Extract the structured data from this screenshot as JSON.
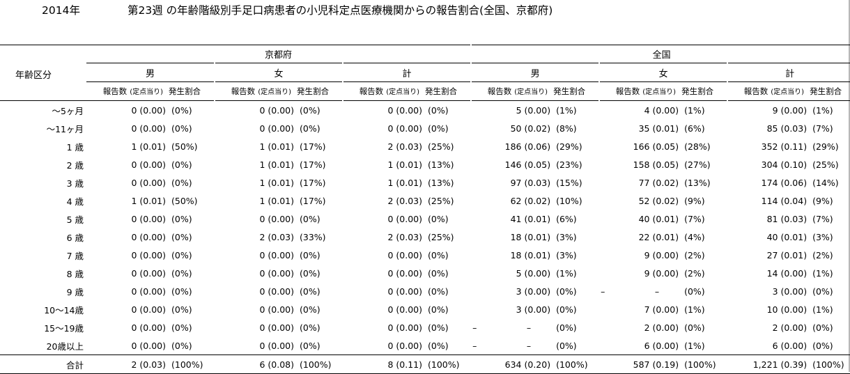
{
  "title": {
    "year": "2014年",
    "text": "第23週 の年齢階級別手足口病患者の小児科定点医療機関からの報告割合(全国、京都府)"
  },
  "header": {
    "age_label": "年齢区分",
    "kyoto": "京都府",
    "national": "全国",
    "male": "男",
    "female": "女",
    "total": "計",
    "report_label": "報告数",
    "per_site_label": "(定点当り)",
    "ratio_label": "発生割合"
  },
  "rows": [
    {
      "age": "～5ヶ月",
      "cells": [
        [
          "0 (0.00)",
          "(0%)"
        ],
        [
          "0 (0.00)",
          "(0%)"
        ],
        [
          "0 (0.00)",
          "(0%)"
        ],
        [
          "5 (0.00)",
          "(1%)"
        ],
        [
          "4 (0.00)",
          "(1%)"
        ],
        [
          "9 (0.00)",
          "(1%)"
        ]
      ]
    },
    {
      "age": "～11ヶ月",
      "cells": [
        [
          "0 (0.00)",
          "(0%)"
        ],
        [
          "0 (0.00)",
          "(0%)"
        ],
        [
          "0 (0.00)",
          "(0%)"
        ],
        [
          "50 (0.02)",
          "(8%)"
        ],
        [
          "35 (0.01)",
          "(6%)"
        ],
        [
          "85 (0.03)",
          "(7%)"
        ]
      ]
    },
    {
      "age": "1 歳",
      "cells": [
        [
          "1 (0.01)",
          "(50%)"
        ],
        [
          "1 (0.01)",
          "(17%)"
        ],
        [
          "2 (0.03)",
          "(25%)"
        ],
        [
          "186 (0.06)",
          "(29%)"
        ],
        [
          "166 (0.05)",
          "(28%)"
        ],
        [
          "352 (0.11)",
          "(29%)"
        ]
      ]
    },
    {
      "age": "2 歳",
      "cells": [
        [
          "0 (0.00)",
          "(0%)"
        ],
        [
          "1 (0.01)",
          "(17%)"
        ],
        [
          "1 (0.01)",
          "(13%)"
        ],
        [
          "146 (0.05)",
          "(23%)"
        ],
        [
          "158 (0.05)",
          "(27%)"
        ],
        [
          "304 (0.10)",
          "(25%)"
        ]
      ]
    },
    {
      "age": "3 歳",
      "cells": [
        [
          "0 (0.00)",
          "(0%)"
        ],
        [
          "1 (0.01)",
          "(17%)"
        ],
        [
          "1 (0.01)",
          "(13%)"
        ],
        [
          "97 (0.03)",
          "(15%)"
        ],
        [
          "77 (0.02)",
          "(13%)"
        ],
        [
          "174 (0.06)",
          "(14%)"
        ]
      ]
    },
    {
      "age": "4 歳",
      "cells": [
        [
          "1 (0.01)",
          "(50%)"
        ],
        [
          "1 (0.01)",
          "(17%)"
        ],
        [
          "2 (0.03)",
          "(25%)"
        ],
        [
          "62 (0.02)",
          "(10%)"
        ],
        [
          "52 (0.02)",
          "(9%)"
        ],
        [
          "114 (0.04)",
          "(9%)"
        ]
      ]
    },
    {
      "age": "5 歳",
      "cells": [
        [
          "0 (0.00)",
          "(0%)"
        ],
        [
          "0 (0.00)",
          "(0%)"
        ],
        [
          "0 (0.00)",
          "(0%)"
        ],
        [
          "41 (0.01)",
          "(6%)"
        ],
        [
          "40 (0.01)",
          "(7%)"
        ],
        [
          "81 (0.03)",
          "(7%)"
        ]
      ]
    },
    {
      "age": "6 歳",
      "cells": [
        [
          "0 (0.00)",
          "(0%)"
        ],
        [
          "2 (0.03)",
          "(33%)"
        ],
        [
          "2 (0.03)",
          "(25%)"
        ],
        [
          "18 (0.01)",
          "(3%)"
        ],
        [
          "22 (0.01)",
          "(4%)"
        ],
        [
          "40 (0.01)",
          "(3%)"
        ]
      ]
    },
    {
      "age": "7 歳",
      "cells": [
        [
          "0 (0.00)",
          "(0%)"
        ],
        [
          "0 (0.00)",
          "(0%)"
        ],
        [
          "0 (0.00)",
          "(0%)"
        ],
        [
          "18 (0.01)",
          "(3%)"
        ],
        [
          "9 (0.00)",
          "(2%)"
        ],
        [
          "27 (0.01)",
          "(2%)"
        ]
      ]
    },
    {
      "age": "8 歳",
      "cells": [
        [
          "0 (0.00)",
          "(0%)"
        ],
        [
          "0 (0.00)",
          "(0%)"
        ],
        [
          "0 (0.00)",
          "(0%)"
        ],
        [
          "5 (0.00)",
          "(1%)"
        ],
        [
          "9 (0.00)",
          "(2%)"
        ],
        [
          "14 (0.00)",
          "(1%)"
        ]
      ]
    },
    {
      "age": "9 歳",
      "cells": [
        [
          "0 (0.00)",
          "(0%)"
        ],
        [
          "0 (0.00)",
          "(0%)"
        ],
        [
          "0 (0.00)",
          "(0%)"
        ],
        [
          "3 (0.00)",
          "(0%)"
        ],
        [
          "–|–",
          "(0%)"
        ],
        [
          "3 (0.00)",
          "(0%)"
        ]
      ]
    },
    {
      "age": "10～14歳",
      "cells": [
        [
          "0 (0.00)",
          "(0%)"
        ],
        [
          "0 (0.00)",
          "(0%)"
        ],
        [
          "0 (0.00)",
          "(0%)"
        ],
        [
          "3 (0.00)",
          "(0%)"
        ],
        [
          "7 (0.00)",
          "(1%)"
        ],
        [
          "10 (0.00)",
          "(1%)"
        ]
      ]
    },
    {
      "age": "15～19歳",
      "cells": [
        [
          "0 (0.00)",
          "(0%)"
        ],
        [
          "0 (0.00)",
          "(0%)"
        ],
        [
          "0 (0.00)",
          "(0%)"
        ],
        [
          "–|–",
          "(0%)"
        ],
        [
          "2 (0.00)",
          "(0%)"
        ],
        [
          "2 (0.00)",
          "(0%)"
        ]
      ]
    },
    {
      "age": "20歳以上",
      "cells": [
        [
          "0 (0.00)",
          "(0%)"
        ],
        [
          "0 (0.00)",
          "(0%)"
        ],
        [
          "0 (0.00)",
          "(0%)"
        ],
        [
          "–|–",
          "(0%)"
        ],
        [
          "6 (0.00)",
          "(1%)"
        ],
        [
          "6 (0.00)",
          "(0%)"
        ]
      ]
    }
  ],
  "total_row": {
    "age": "合計",
    "cells": [
      [
        "2 (0.03)",
        "(100%)"
      ],
      [
        "6 (0.08)",
        "(100%)"
      ],
      [
        "8 (0.11)",
        "(100%)"
      ],
      [
        "634 (0.20)",
        "(100%)"
      ],
      [
        "587 (0.19)",
        "(100%)"
      ],
      [
        "1,221 (0.39)",
        "(100%)"
      ]
    ]
  }
}
